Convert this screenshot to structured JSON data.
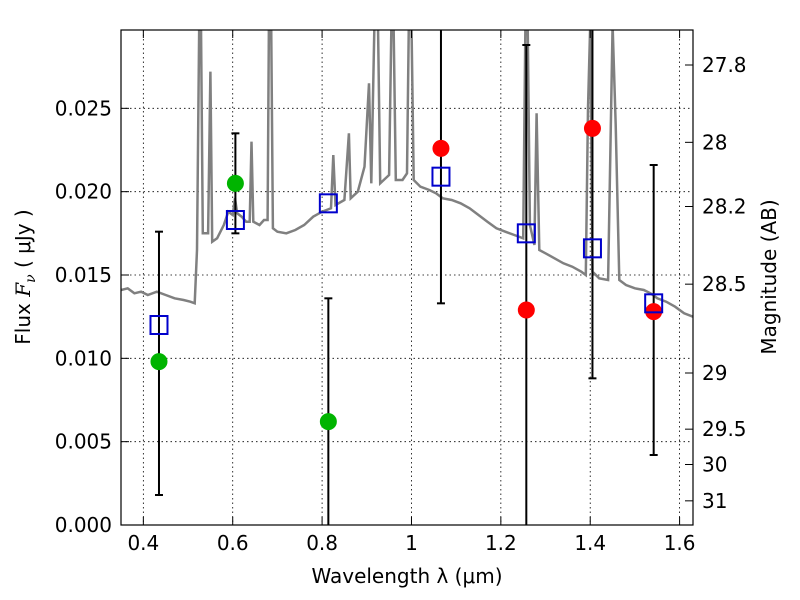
{
  "chart_data": {
    "type": "scatter",
    "title": "",
    "xlabel": "Wavelength  λ (μm)",
    "ylabel": "Flux  F_ν  ( μJy )",
    "ylabel_parts": {
      "prefix": "Flux  ",
      "symbol": "F",
      "subscript": "ν",
      "suffix": "  ( μJy )"
    },
    "y2label": "Magnitude (AB)",
    "xlim": [
      0.35,
      1.63
    ],
    "ylim": [
      0.0,
      0.0297
    ],
    "grid": true,
    "x_ticks": [
      {
        "v": 0.4,
        "label": "0.4"
      },
      {
        "v": 0.6,
        "label": "0.6"
      },
      {
        "v": 0.8,
        "label": "0.8"
      },
      {
        "v": 1.0,
        "label": "1"
      },
      {
        "v": 1.2,
        "label": "1.2"
      },
      {
        "v": 1.4,
        "label": "1.4"
      },
      {
        "v": 1.6,
        "label": "1.6"
      }
    ],
    "y_ticks": [
      {
        "v": 0.0,
        "label": "0.000"
      },
      {
        "v": 0.005,
        "label": "0.005"
      },
      {
        "v": 0.01,
        "label": "0.010"
      },
      {
        "v": 0.015,
        "label": "0.015"
      },
      {
        "v": 0.02,
        "label": "0.020"
      },
      {
        "v": 0.025,
        "label": "0.025"
      }
    ],
    "y2_ticks": [
      {
        "flux": 0.0276,
        "label": "27.8"
      },
      {
        "flux": 0.02296,
        "label": "28"
      },
      {
        "flux": 0.01911,
        "label": "28.2"
      },
      {
        "flux": 0.01445,
        "label": "28.5"
      },
      {
        "flux": 0.00912,
        "label": "29"
      },
      {
        "flux": 0.00575,
        "label": "29.5"
      },
      {
        "flux": 0.00363,
        "label": "30"
      },
      {
        "flux": 0.00145,
        "label": "31"
      }
    ],
    "model_color": "#808080",
    "model_spectrum": [
      [
        0.35,
        0.0141
      ],
      [
        0.365,
        0.0142
      ],
      [
        0.38,
        0.0139
      ],
      [
        0.395,
        0.014
      ],
      [
        0.41,
        0.0138
      ],
      [
        0.43,
        0.014
      ],
      [
        0.45,
        0.0138
      ],
      [
        0.47,
        0.0136
      ],
      [
        0.49,
        0.0135
      ],
      [
        0.505,
        0.0134
      ],
      [
        0.515,
        0.0133
      ],
      [
        0.52,
        0.0165
      ],
      [
        0.525,
        0.03
      ],
      [
        0.529,
        0.03
      ],
      [
        0.533,
        0.0175
      ],
      [
        0.545,
        0.0175
      ],
      [
        0.55,
        0.0272
      ],
      [
        0.554,
        0.017
      ],
      [
        0.565,
        0.0172
      ],
      [
        0.58,
        0.018
      ],
      [
        0.59,
        0.0188
      ],
      [
        0.6,
        0.0186
      ],
      [
        0.605,
        0.0196
      ],
      [
        0.61,
        0.0187
      ],
      [
        0.62,
        0.0185
      ],
      [
        0.63,
        0.0182
      ],
      [
        0.638,
        0.0182
      ],
      [
        0.642,
        0.023
      ],
      [
        0.646,
        0.0182
      ],
      [
        0.66,
        0.018
      ],
      [
        0.67,
        0.0183
      ],
      [
        0.678,
        0.0183
      ],
      [
        0.681,
        0.03
      ],
      [
        0.686,
        0.03
      ],
      [
        0.69,
        0.0178
      ],
      [
        0.7,
        0.0176
      ],
      [
        0.72,
        0.0175
      ],
      [
        0.74,
        0.0177
      ],
      [
        0.76,
        0.018
      ],
      [
        0.78,
        0.0185
      ],
      [
        0.8,
        0.0188
      ],
      [
        0.82,
        0.019
      ],
      [
        0.825,
        0.0222
      ],
      [
        0.83,
        0.0192
      ],
      [
        0.85,
        0.0195
      ],
      [
        0.86,
        0.0235
      ],
      [
        0.864,
        0.0196
      ],
      [
        0.88,
        0.02
      ],
      [
        0.895,
        0.0215
      ],
      [
        0.905,
        0.0265
      ],
      [
        0.91,
        0.0205
      ],
      [
        0.917,
        0.03
      ],
      [
        0.925,
        0.03
      ],
      [
        0.93,
        0.0205
      ],
      [
        0.95,
        0.021
      ],
      [
        0.955,
        0.03
      ],
      [
        0.96,
        0.03
      ],
      [
        0.965,
        0.0207
      ],
      [
        0.98,
        0.0207
      ],
      [
        0.99,
        0.0211
      ],
      [
        0.994,
        0.03
      ],
      [
        1.0,
        0.03
      ],
      [
        1.005,
        0.0207
      ],
      [
        1.02,
        0.0203
      ],
      [
        1.04,
        0.0201
      ],
      [
        1.055,
        0.0199
      ],
      [
        1.07,
        0.0196
      ],
      [
        1.09,
        0.0195
      ],
      [
        1.11,
        0.0193
      ],
      [
        1.13,
        0.019
      ],
      [
        1.15,
        0.0186
      ],
      [
        1.17,
        0.0182
      ],
      [
        1.19,
        0.0178
      ],
      [
        1.21,
        0.0176
      ],
      [
        1.23,
        0.0174
      ],
      [
        1.25,
        0.0172
      ],
      [
        1.255,
        0.03
      ],
      [
        1.26,
        0.03
      ],
      [
        1.265,
        0.018
      ],
      [
        1.275,
        0.0168
      ],
      [
        1.28,
        0.0247
      ],
      [
        1.286,
        0.0165
      ],
      [
        1.3,
        0.0163
      ],
      [
        1.32,
        0.016
      ],
      [
        1.34,
        0.0157
      ],
      [
        1.36,
        0.0155
      ],
      [
        1.38,
        0.0152
      ],
      [
        1.39,
        0.015
      ],
      [
        1.395,
        0.025
      ],
      [
        1.4,
        0.03
      ],
      [
        1.405,
        0.0152
      ],
      [
        1.42,
        0.0148
      ],
      [
        1.44,
        0.0147
      ],
      [
        1.45,
        0.03
      ],
      [
        1.457,
        0.024
      ],
      [
        1.465,
        0.0147
      ],
      [
        1.48,
        0.0144
      ],
      [
        1.5,
        0.0142
      ],
      [
        1.52,
        0.0141
      ],
      [
        1.535,
        0.0139
      ],
      [
        1.55,
        0.0136
      ],
      [
        1.57,
        0.0134
      ],
      [
        1.59,
        0.0131
      ],
      [
        1.61,
        0.0127
      ],
      [
        1.63,
        0.0125
      ]
    ],
    "series": [
      {
        "color": "#00b400",
        "marker": "circle",
        "points": [
          {
            "x": 0.435,
            "y": 0.0098
          },
          {
            "x": 0.606,
            "y": 0.0205
          },
          {
            "x": 0.814,
            "y": 0.0062
          }
        ]
      },
      {
        "color": "#ff0000",
        "marker": "circle",
        "points": [
          {
            "x": 1.066,
            "y": 0.0226
          },
          {
            "x": 1.257,
            "y": 0.0129
          },
          {
            "x": 1.405,
            "y": 0.0238
          },
          {
            "x": 1.542,
            "y": 0.0128
          }
        ]
      },
      {
        "color": "#0000cc",
        "marker": "open-square",
        "points": [
          {
            "x": 0.435,
            "y": 0.012
          },
          {
            "x": 0.606,
            "y": 0.0183
          },
          {
            "x": 0.814,
            "y": 0.0193
          },
          {
            "x": 1.066,
            "y": 0.0209
          },
          {
            "x": 1.257,
            "y": 0.0175
          },
          {
            "x": 1.405,
            "y": 0.0166
          },
          {
            "x": 1.542,
            "y": 0.0133
          }
        ]
      }
    ],
    "error_bars": [
      {
        "x": 0.435,
        "low": 0.0018,
        "high": 0.0176
      },
      {
        "x": 0.606,
        "low": 0.0175,
        "high": 0.0235
      },
      {
        "x": 0.814,
        "low": 0.0,
        "high": 0.0136
      },
      {
        "x": 1.066,
        "low": 0.0133,
        "high": 0.03
      },
      {
        "x": 1.257,
        "low": 0.0,
        "high": 0.0288
      },
      {
        "x": 1.405,
        "low": 0.0088,
        "high": 0.03
      },
      {
        "x": 1.542,
        "low": 0.0042,
        "high": 0.0216
      }
    ]
  }
}
